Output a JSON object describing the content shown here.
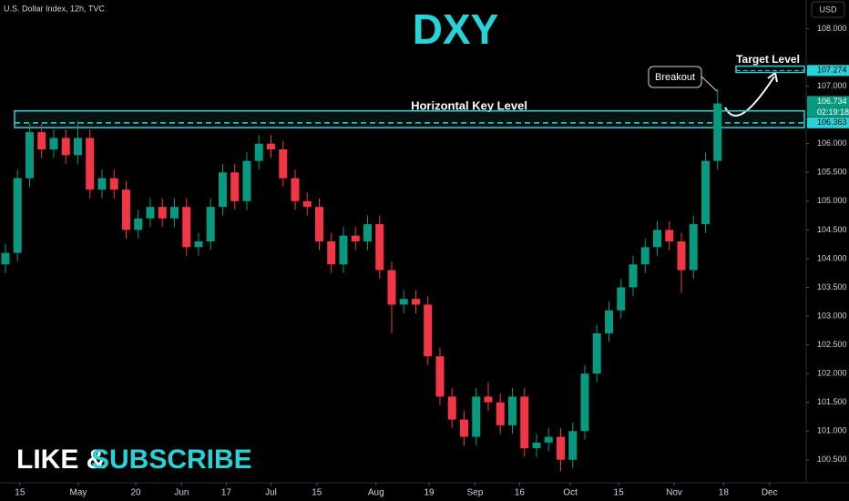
{
  "chart_data": {
    "type": "candlestick",
    "symbol": "U.S. Dollar Index, 12h, TVC",
    "title": "DXY",
    "currency": "USD",
    "up_color": "#089981",
    "down_color": "#f23645",
    "open": [
      103.9,
      104.1,
      105.4,
      106.2,
      105.9,
      106.1,
      105.8,
      106.1,
      105.2,
      105.4,
      105.2,
      104.5,
      104.7,
      104.9,
      104.7,
      104.9,
      104.2,
      104.3,
      104.9,
      105.5,
      105.0,
      105.7,
      106.0,
      105.9,
      105.4,
      105.0,
      104.9,
      104.3,
      103.9,
      104.4,
      104.3,
      104.6,
      103.8,
      103.2,
      103.3,
      103.2,
      102.3,
      101.6,
      101.2,
      100.9,
      101.6,
      101.5,
      101.1,
      101.6,
      100.7,
      100.8,
      100.9,
      100.5,
      101.0,
      102.0,
      102.7,
      103.1,
      103.5,
      103.9,
      104.2,
      104.5,
      104.3,
      103.8,
      104.6,
      105.7
    ],
    "high": [
      104.25,
      105.55,
      106.35,
      106.35,
      106.25,
      106.25,
      106.4,
      106.25,
      105.55,
      105.55,
      105.35,
      104.85,
      105.05,
      105.05,
      105.05,
      105.05,
      104.45,
      105.05,
      105.65,
      105.65,
      105.85,
      106.15,
      106.15,
      106.05,
      105.55,
      105.15,
      105.05,
      104.45,
      104.55,
      104.55,
      104.75,
      104.75,
      103.95,
      103.45,
      103.45,
      103.35,
      102.45,
      101.75,
      101.35,
      101.75,
      101.85,
      101.65,
      101.75,
      101.75,
      100.95,
      101.05,
      101.05,
      101.15,
      102.15,
      102.85,
      103.25,
      103.65,
      104.05,
      104.35,
      104.65,
      104.65,
      104.45,
      104.75,
      105.85,
      106.95
    ],
    "low": [
      103.75,
      103.95,
      105.25,
      105.75,
      105.75,
      105.65,
      105.65,
      105.05,
      105.05,
      105.05,
      104.35,
      104.35,
      104.55,
      104.55,
      104.55,
      104.05,
      104.05,
      104.15,
      104.75,
      104.85,
      104.85,
      105.55,
      105.75,
      105.25,
      104.85,
      104.75,
      104.15,
      103.75,
      103.75,
      104.15,
      104.15,
      103.65,
      102.7,
      103.05,
      103.05,
      102.15,
      101.45,
      101.05,
      100.75,
      100.75,
      101.35,
      100.95,
      100.95,
      100.55,
      100.55,
      100.65,
      100.3,
      100.35,
      100.85,
      101.85,
      102.55,
      102.95,
      103.35,
      103.75,
      104.05,
      104.15,
      103.4,
      103.65,
      104.45,
      105.55
    ],
    "close": [
      104.1,
      105.4,
      106.2,
      105.9,
      106.1,
      105.8,
      106.1,
      105.2,
      105.4,
      105.2,
      104.5,
      104.7,
      104.9,
      104.7,
      104.9,
      104.2,
      104.3,
      104.9,
      105.5,
      105.0,
      105.7,
      106.0,
      105.9,
      105.4,
      105.0,
      104.9,
      104.3,
      103.9,
      104.4,
      104.3,
      104.6,
      103.8,
      103.2,
      103.3,
      103.2,
      102.3,
      101.6,
      101.2,
      100.9,
      101.6,
      101.5,
      101.1,
      101.6,
      100.7,
      100.8,
      100.9,
      100.5,
      101.0,
      102.0,
      102.7,
      103.1,
      103.5,
      103.9,
      104.2,
      104.5,
      104.3,
      103.8,
      104.6,
      105.7,
      106.7
    ],
    "xlim": [
      -0.45,
      66.34
    ],
    "xticks": [
      {
        "value": 1.2,
        "label": "15"
      },
      {
        "value": 6.04,
        "label": "May"
      },
      {
        "value": 10.8,
        "label": "20"
      },
      {
        "value": 14.6,
        "label": "Jun"
      },
      {
        "value": 18.3,
        "label": "17"
      },
      {
        "value": 22.0,
        "label": "Jul"
      },
      {
        "value": 25.8,
        "label": "15"
      },
      {
        "value": 30.7,
        "label": "Aug"
      },
      {
        "value": 35.1,
        "label": "19"
      },
      {
        "value": 38.9,
        "label": "Sep"
      },
      {
        "value": 42.6,
        "label": "16"
      },
      {
        "value": 46.8,
        "label": "Oct"
      },
      {
        "value": 50.8,
        "label": "15"
      },
      {
        "value": 55.4,
        "label": "Nov"
      },
      {
        "value": 59.5,
        "label": "18"
      },
      {
        "value": 63.3,
        "label": "Dec"
      }
    ],
    "ylim": [
      100.1,
      108.5
    ],
    "yticks": [
      {
        "value": 100.5,
        "label": "100.500"
      },
      {
        "value": 101,
        "label": "101.000"
      },
      {
        "value": 101.5,
        "label": "101.500"
      },
      {
        "value": 102,
        "label": "102.000"
      },
      {
        "value": 102.5,
        "label": "102.500"
      },
      {
        "value": 103,
        "label": "103.000"
      },
      {
        "value": 103.5,
        "label": "103.500"
      },
      {
        "value": 104,
        "label": "104.000"
      },
      {
        "value": 104.5,
        "label": "104.500"
      },
      {
        "value": 105,
        "label": "105.000"
      },
      {
        "value": 105.5,
        "label": "105.500"
      },
      {
        "value": 106,
        "label": "106.000"
      },
      {
        "value": 107,
        "label": "107.000"
      },
      {
        "value": 108,
        "label": "108.000"
      }
    ],
    "last_price": 106.734,
    "countdown": "02:19:18",
    "key_level": {
      "label": "Horizontal Key Level",
      "low": 106.28,
      "high": 106.57,
      "value": 106.363
    },
    "target_level": {
      "label": "Target Level",
      "low": 107.24,
      "high": 107.35,
      "value": 107.274
    },
    "breakout_label": "Breakout",
    "cta_left": "LIKE &",
    "cta_right": "SUBSCRIBE"
  }
}
